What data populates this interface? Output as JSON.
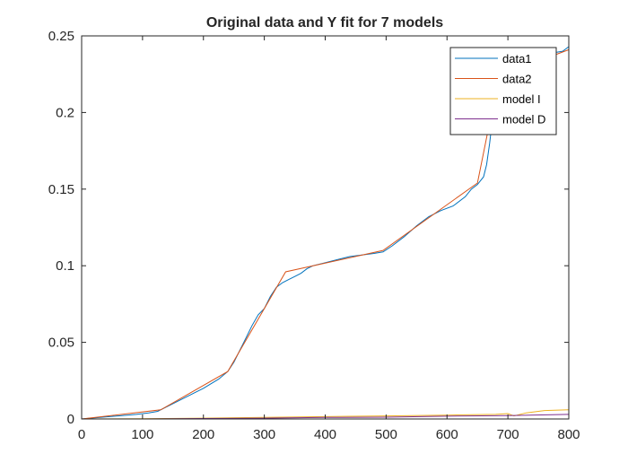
{
  "chart_data": {
    "type": "line",
    "title": "Original data and Y fit for 7 models",
    "xlabel": "",
    "ylabel": "",
    "xlim": [
      0,
      800
    ],
    "ylim": [
      0,
      0.25
    ],
    "xticks": [
      0,
      100,
      200,
      300,
      400,
      500,
      600,
      700,
      800
    ],
    "xtick_labels": [
      "0",
      "100",
      "200",
      "300",
      "400",
      "500",
      "600",
      "700",
      "800"
    ],
    "yticks": [
      0,
      0.05,
      0.1,
      0.15,
      0.2,
      0.25
    ],
    "ytick_labels": [
      "0",
      "0.05",
      "0.1",
      "0.15",
      "0.2",
      "0.25"
    ],
    "grid": false,
    "legend_position": "top-right",
    "series": [
      {
        "name": "data1",
        "color": "#0072BD",
        "x": [
          0,
          30,
          60,
          90,
          110,
          125,
          135,
          150,
          170,
          200,
          225,
          240,
          250,
          260,
          270,
          280,
          290,
          300,
          310,
          320,
          330,
          340,
          350,
          360,
          370,
          380,
          400,
          420,
          440,
          460,
          480,
          495,
          510,
          530,
          550,
          570,
          590,
          610,
          630,
          640,
          650,
          660,
          665,
          670,
          675,
          680,
          690,
          700,
          710,
          730,
          760,
          790,
          800
        ],
        "y": [
          0.0,
          0.001,
          0.002,
          0.003,
          0.004,
          0.005,
          0.007,
          0.01,
          0.014,
          0.02,
          0.026,
          0.031,
          0.037,
          0.045,
          0.053,
          0.061,
          0.068,
          0.072,
          0.08,
          0.086,
          0.089,
          0.091,
          0.093,
          0.095,
          0.098,
          0.1,
          0.102,
          0.104,
          0.106,
          0.107,
          0.108,
          0.109,
          0.113,
          0.119,
          0.126,
          0.132,
          0.136,
          0.139,
          0.145,
          0.15,
          0.153,
          0.158,
          0.166,
          0.18,
          0.197,
          0.209,
          0.221,
          0.227,
          0.232,
          0.235,
          0.238,
          0.24,
          0.243
        ]
      },
      {
        "name": "data2",
        "color": "#D95319",
        "x": [
          0,
          130,
          240,
          335,
          495,
          650,
          680,
          700,
          800
        ],
        "y": [
          0.0,
          0.006,
          0.031,
          0.096,
          0.11,
          0.154,
          0.213,
          0.226,
          0.241
        ]
      },
      {
        "name": "model I",
        "color": "#EDB120",
        "x": [
          0,
          100,
          200,
          300,
          400,
          500,
          600,
          680,
          700,
          710,
          730,
          760,
          800
        ],
        "y": [
          0.0,
          0.0002,
          0.0005,
          0.001,
          0.0015,
          0.002,
          0.0025,
          0.003,
          0.0035,
          0.002,
          0.004,
          0.0055,
          0.006
        ]
      },
      {
        "name": "model D",
        "color": "#7E2F8E",
        "x": [
          0,
          100,
          200,
          300,
          400,
          500,
          600,
          700,
          800
        ],
        "y": [
          0.0,
          0.0,
          0.0003,
          0.0005,
          0.001,
          0.0012,
          0.0018,
          0.0022,
          0.003
        ]
      }
    ]
  }
}
